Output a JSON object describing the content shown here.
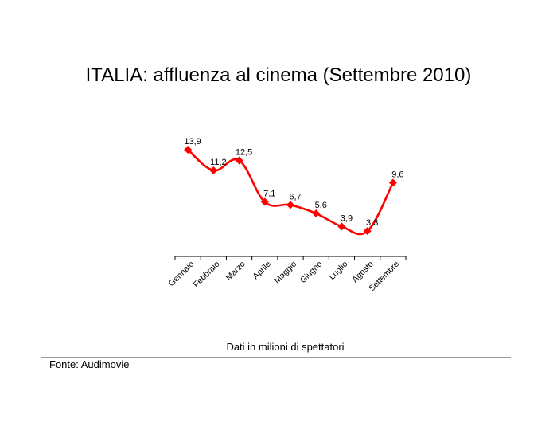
{
  "title": "ITALIA: affluenza al cinema (Settembre 2010)",
  "subtitle": "Dati in milioni di spettatori",
  "source": "Fonte: Audimovie",
  "colors": {
    "series": "#ff0000",
    "axis": "#000000",
    "rule": "#9a9a9a"
  },
  "chart_data": {
    "type": "line",
    "categories": [
      "Gennaio",
      "Febbraio",
      "Marzo",
      "Aprile",
      "Maggio",
      "Giugno",
      "Luglio",
      "Agosto",
      "Settembre"
    ],
    "series": [
      {
        "values": [
          13.9,
          11.2,
          12.5,
          7.1,
          6.7,
          5.6,
          3.9,
          3.3,
          9.6
        ]
      }
    ],
    "data_labels": [
      "13,9",
      "11,2",
      "12,5",
      "7,1",
      "6,7",
      "5,6",
      "3,9",
      "3,3",
      "9,6"
    ],
    "ylim": [
      0,
      13.9
    ],
    "grid": false,
    "legend": "none",
    "marker": "diamond",
    "smooth": true
  }
}
